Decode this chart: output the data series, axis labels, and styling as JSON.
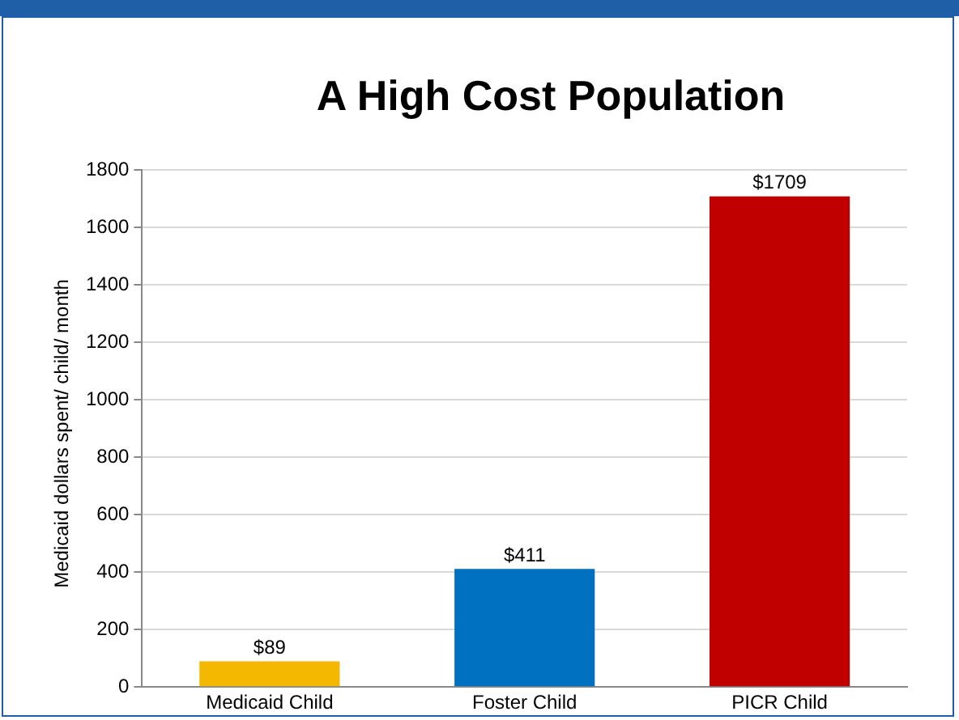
{
  "chart_data": {
    "type": "bar",
    "title": "A High Cost Population",
    "ylabel": "Medicaid dollars spent/ child/ month",
    "categories": [
      "Medicaid Child",
      "Foster Child",
      "PICR Child"
    ],
    "values": [
      89,
      411,
      1709
    ],
    "colors": [
      "#f5b800",
      "#0070c0",
      "#c00000"
    ],
    "value_labels": [
      "$89",
      "$411",
      "$1709"
    ],
    "ylim": [
      0,
      1800
    ],
    "yticks": [
      0,
      200,
      400,
      600,
      800,
      1000,
      1200,
      1400,
      1600,
      1800
    ],
    "grid": "y",
    "legend": false
  }
}
